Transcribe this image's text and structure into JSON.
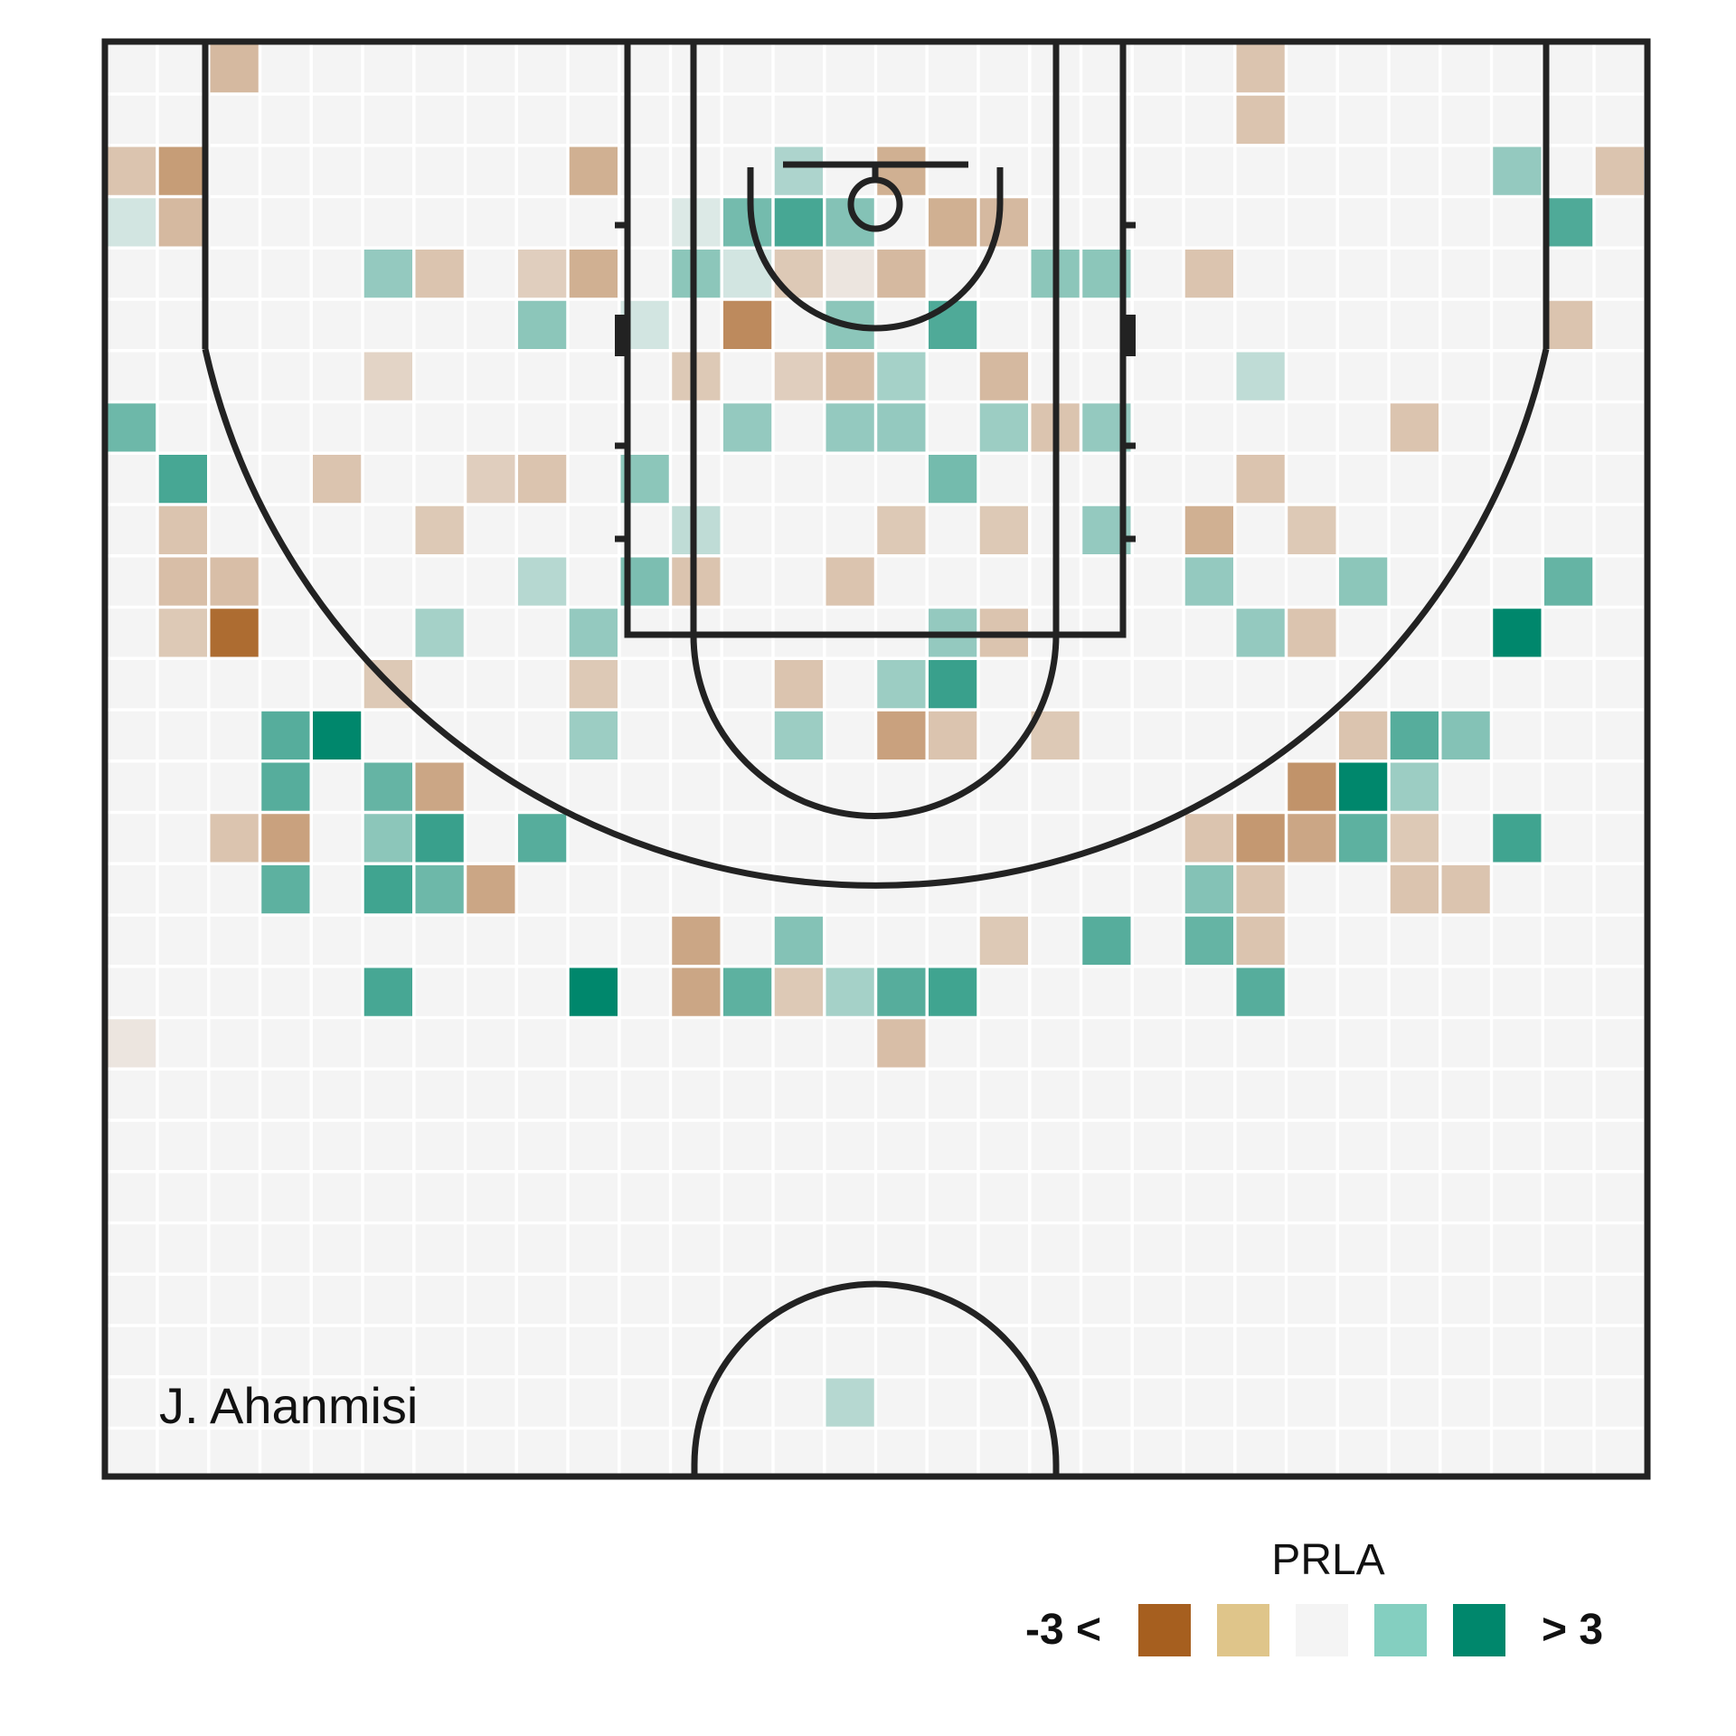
{
  "chart_data": {
    "type": "heatmap",
    "title": "",
    "player": "J. Ahanmisi",
    "legend": {
      "title": "PRLA",
      "low_label": "-3 <",
      "high_label": "> 3",
      "swatches": [
        "#a65f1f",
        "#dfc58a",
        "#f4f4f4",
        "#84cfc0",
        "#00876c"
      ]
    },
    "scale": {
      "domain": [
        -3,
        3
      ],
      "neg_color": "#a65f1f",
      "mid_color": "#f4f4f4",
      "pos_color": "#00876c"
    },
    "grid": {
      "columns": 30,
      "rows": 28,
      "empty_color": "#f4f4f4"
    },
    "cells": [
      {
        "col": 2,
        "row": 0,
        "value": -1.0
      },
      {
        "col": 22,
        "row": 0,
        "value": -0.8
      },
      {
        "col": 22,
        "row": 1,
        "value": -0.8
      },
      {
        "col": 0,
        "row": 2,
        "value": -0.8
      },
      {
        "col": 1,
        "row": 2,
        "value": -1.6
      },
      {
        "col": 9,
        "row": 2,
        "value": -1.2
      },
      {
        "col": 13,
        "row": 2,
        "value": 0.7
      },
      {
        "col": 15,
        "row": 2,
        "value": -1.2
      },
      {
        "col": 27,
        "row": 2,
        "value": 1.0
      },
      {
        "col": 29,
        "row": 2,
        "value": -0.8
      },
      {
        "col": 0,
        "row": 3,
        "value": 0.3
      },
      {
        "col": 1,
        "row": 3,
        "value": -1.0
      },
      {
        "col": 11,
        "row": 3,
        "value": 0.2
      },
      {
        "col": 12,
        "row": 3,
        "value": 1.4
      },
      {
        "col": 13,
        "row": 3,
        "value": 2.0
      },
      {
        "col": 14,
        "row": 3,
        "value": 1.2
      },
      {
        "col": 16,
        "row": 3,
        "value": -1.2
      },
      {
        "col": 17,
        "row": 3,
        "value": -1.0
      },
      {
        "col": 28,
        "row": 3,
        "value": 1.9
      },
      {
        "col": 5,
        "row": 4,
        "value": 1.0
      },
      {
        "col": 6,
        "row": 4,
        "value": -0.8
      },
      {
        "col": 8,
        "row": 4,
        "value": -0.6
      },
      {
        "col": 9,
        "row": 4,
        "value": -1.2
      },
      {
        "col": 11,
        "row": 4,
        "value": 1.1
      },
      {
        "col": 12,
        "row": 4,
        "value": 0.3
      },
      {
        "col": 13,
        "row": 4,
        "value": -0.7
      },
      {
        "col": 14,
        "row": 4,
        "value": -0.2
      },
      {
        "col": 15,
        "row": 4,
        "value": -1.0
      },
      {
        "col": 18,
        "row": 4,
        "value": 1.1
      },
      {
        "col": 19,
        "row": 4,
        "value": 1.1
      },
      {
        "col": 21,
        "row": 4,
        "value": -0.8
      },
      {
        "col": 8,
        "row": 5,
        "value": 1.1
      },
      {
        "col": 10,
        "row": 5,
        "value": 0.3
      },
      {
        "col": 12,
        "row": 5,
        "value": -2.0
      },
      {
        "col": 14,
        "row": 5,
        "value": 1.1
      },
      {
        "col": 16,
        "row": 5,
        "value": 1.9
      },
      {
        "col": 28,
        "row": 5,
        "value": -0.8
      },
      {
        "col": 5,
        "row": 6,
        "value": -0.5
      },
      {
        "col": 11,
        "row": 6,
        "value": -0.7
      },
      {
        "col": 13,
        "row": 6,
        "value": -0.6
      },
      {
        "col": 14,
        "row": 6,
        "value": -0.9
      },
      {
        "col": 15,
        "row": 6,
        "value": 0.8
      },
      {
        "col": 17,
        "row": 6,
        "value": -1.0
      },
      {
        "col": 22,
        "row": 6,
        "value": 0.5
      },
      {
        "col": 0,
        "row": 7,
        "value": 1.5
      },
      {
        "col": 12,
        "row": 7,
        "value": 1.0
      },
      {
        "col": 14,
        "row": 7,
        "value": 1.0
      },
      {
        "col": 15,
        "row": 7,
        "value": 1.0
      },
      {
        "col": 17,
        "row": 7,
        "value": 0.9
      },
      {
        "col": 18,
        "row": 7,
        "value": -0.8
      },
      {
        "col": 19,
        "row": 7,
        "value": 1.0
      },
      {
        "col": 25,
        "row": 7,
        "value": -0.8
      },
      {
        "col": 1,
        "row": 8,
        "value": 2.0
      },
      {
        "col": 4,
        "row": 8,
        "value": -0.8
      },
      {
        "col": 7,
        "row": 8,
        "value": -0.6
      },
      {
        "col": 8,
        "row": 8,
        "value": -0.8
      },
      {
        "col": 10,
        "row": 8,
        "value": 1.1
      },
      {
        "col": 16,
        "row": 8,
        "value": 1.4
      },
      {
        "col": 22,
        "row": 8,
        "value": -0.8
      },
      {
        "col": 1,
        "row": 9,
        "value": -0.8
      },
      {
        "col": 6,
        "row": 9,
        "value": -0.7
      },
      {
        "col": 11,
        "row": 9,
        "value": 0.5
      },
      {
        "col": 15,
        "row": 9,
        "value": -0.7
      },
      {
        "col": 17,
        "row": 9,
        "value": -0.7
      },
      {
        "col": 19,
        "row": 9,
        "value": 1.0
      },
      {
        "col": 21,
        "row": 9,
        "value": -1.2
      },
      {
        "col": 23,
        "row": 9,
        "value": -0.7
      },
      {
        "col": 1,
        "row": 10,
        "value": -0.9
      },
      {
        "col": 2,
        "row": 10,
        "value": -0.9
      },
      {
        "col": 8,
        "row": 10,
        "value": 0.6
      },
      {
        "col": 10,
        "row": 10,
        "value": 1.3
      },
      {
        "col": 11,
        "row": 10,
        "value": -0.8
      },
      {
        "col": 14,
        "row": 10,
        "value": -0.8
      },
      {
        "col": 21,
        "row": 10,
        "value": 1.0
      },
      {
        "col": 24,
        "row": 10,
        "value": 1.1
      },
      {
        "col": 28,
        "row": 10,
        "value": 1.6
      },
      {
        "col": 1,
        "row": 11,
        "value": -0.7
      },
      {
        "col": 2,
        "row": 11,
        "value": -2.7
      },
      {
        "col": 6,
        "row": 11,
        "value": 0.8
      },
      {
        "col": 9,
        "row": 11,
        "value": 1.0
      },
      {
        "col": 16,
        "row": 11,
        "value": 1.0
      },
      {
        "col": 17,
        "row": 11,
        "value": -0.8
      },
      {
        "col": 22,
        "row": 11,
        "value": 1.0
      },
      {
        "col": 23,
        "row": 11,
        "value": -0.8
      },
      {
        "col": 27,
        "row": 11,
        "value": 3.0
      },
      {
        "col": 5,
        "row": 12,
        "value": -0.7
      },
      {
        "col": 9,
        "row": 12,
        "value": -0.7
      },
      {
        "col": 13,
        "row": 12,
        "value": -0.8
      },
      {
        "col": 15,
        "row": 12,
        "value": 0.9
      },
      {
        "col": 16,
        "row": 12,
        "value": 2.2
      },
      {
        "col": 3,
        "row": 13,
        "value": 1.8
      },
      {
        "col": 4,
        "row": 13,
        "value": 3.0
      },
      {
        "col": 9,
        "row": 13,
        "value": 0.9
      },
      {
        "col": 13,
        "row": 13,
        "value": 0.9
      },
      {
        "col": 15,
        "row": 13,
        "value": -1.5
      },
      {
        "col": 16,
        "row": 13,
        "value": -0.8
      },
      {
        "col": 18,
        "row": 13,
        "value": -0.7
      },
      {
        "col": 24,
        "row": 13,
        "value": -0.8
      },
      {
        "col": 25,
        "row": 13,
        "value": 1.8
      },
      {
        "col": 26,
        "row": 13,
        "value": 1.2
      },
      {
        "col": 3,
        "row": 14,
        "value": 1.8
      },
      {
        "col": 5,
        "row": 14,
        "value": 1.6
      },
      {
        "col": 6,
        "row": 14,
        "value": -1.4
      },
      {
        "col": 23,
        "row": 14,
        "value": -1.8
      },
      {
        "col": 24,
        "row": 14,
        "value": 3.0
      },
      {
        "col": 25,
        "row": 14,
        "value": 0.9
      },
      {
        "col": 2,
        "row": 15,
        "value": -0.8
      },
      {
        "col": 3,
        "row": 15,
        "value": -1.5
      },
      {
        "col": 5,
        "row": 15,
        "value": 1.1
      },
      {
        "col": 6,
        "row": 15,
        "value": 2.2
      },
      {
        "col": 8,
        "row": 15,
        "value": 1.8
      },
      {
        "col": 21,
        "row": 15,
        "value": -0.8
      },
      {
        "col": 22,
        "row": 15,
        "value": -1.7
      },
      {
        "col": 23,
        "row": 15,
        "value": -1.4
      },
      {
        "col": 24,
        "row": 15,
        "value": 1.7
      },
      {
        "col": 25,
        "row": 15,
        "value": -0.7
      },
      {
        "col": 27,
        "row": 15,
        "value": 2.1
      },
      {
        "col": 3,
        "row": 16,
        "value": 1.7
      },
      {
        "col": 5,
        "row": 16,
        "value": 2.1
      },
      {
        "col": 6,
        "row": 16,
        "value": 1.5
      },
      {
        "col": 7,
        "row": 16,
        "value": -1.4
      },
      {
        "col": 21,
        "row": 16,
        "value": 1.2
      },
      {
        "col": 22,
        "row": 16,
        "value": -0.8
      },
      {
        "col": 25,
        "row": 16,
        "value": -0.8
      },
      {
        "col": 26,
        "row": 16,
        "value": -0.8
      },
      {
        "col": 11,
        "row": 17,
        "value": -1.4
      },
      {
        "col": 13,
        "row": 17,
        "value": 1.2
      },
      {
        "col": 17,
        "row": 17,
        "value": -0.7
      },
      {
        "col": 19,
        "row": 17,
        "value": 1.8
      },
      {
        "col": 21,
        "row": 17,
        "value": 1.6
      },
      {
        "col": 22,
        "row": 17,
        "value": -0.8
      },
      {
        "col": 5,
        "row": 18,
        "value": 2.0
      },
      {
        "col": 9,
        "row": 18,
        "value": 3.0
      },
      {
        "col": 11,
        "row": 18,
        "value": -1.4
      },
      {
        "col": 12,
        "row": 18,
        "value": 1.7
      },
      {
        "col": 13,
        "row": 18,
        "value": -0.7
      },
      {
        "col": 14,
        "row": 18,
        "value": 0.8
      },
      {
        "col": 15,
        "row": 18,
        "value": 1.8
      },
      {
        "col": 16,
        "row": 18,
        "value": 2.1
      },
      {
        "col": 22,
        "row": 18,
        "value": 1.8
      },
      {
        "col": 0,
        "row": 19,
        "value": -0.2
      },
      {
        "col": 15,
        "row": 19,
        "value": -0.9
      },
      {
        "col": 14,
        "row": 26,
        "value": 0.6
      }
    ]
  }
}
